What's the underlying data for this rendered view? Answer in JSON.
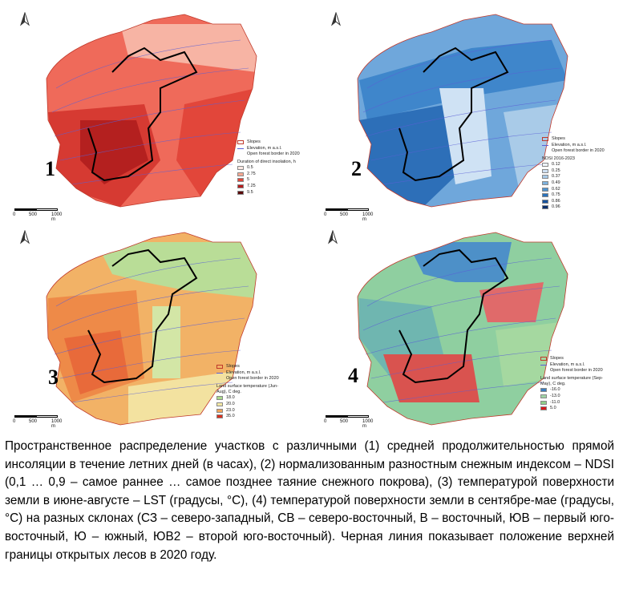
{
  "panels": [
    {
      "number": "1",
      "legend": {
        "slopes": "Slopes",
        "elevation": "Elevation, m a.s.l.",
        "forest": "Open forest border in 2020",
        "title": "Duration of direct insolation, h",
        "entries": [
          {
            "label": "0.5",
            "color": "#fde8e2"
          },
          {
            "label": "2.75",
            "color": "#f5a892"
          },
          {
            "label": "5",
            "color": "#e2463a"
          },
          {
            "label": "7.25",
            "color": "#b51d1d"
          },
          {
            "label": "9.5",
            "color": "#5a0a0a"
          }
        ]
      },
      "colors": {
        "a": "#ef6a5a",
        "b": "#d63a32",
        "c": "#b4201f",
        "d": "#f7b4a4"
      }
    },
    {
      "number": "2",
      "legend": {
        "slopes": "Slopes",
        "elevation": "Elevation, m a.s.l.",
        "forest": "Open forest border in 2020",
        "title": "NDSI 2016-2023",
        "entries": [
          {
            "label": "0.12",
            "color": "#eef4fb"
          },
          {
            "label": "0.25",
            "color": "#cfe0f2"
          },
          {
            "label": "0.37",
            "color": "#a9cbe8"
          },
          {
            "label": "0.49",
            "color": "#7db2dd"
          },
          {
            "label": "0.62",
            "color": "#4f93cf"
          },
          {
            "label": "0.75",
            "color": "#2b72bb"
          },
          {
            "label": "0.86",
            "color": "#17529c"
          },
          {
            "label": "0.96",
            "color": "#0b2f6b"
          }
        ]
      },
      "colors": {
        "a": "#6fa7db",
        "b": "#3f86cb",
        "c": "#2d6fb8",
        "d": "#cfe2f4"
      }
    },
    {
      "number": "3",
      "legend": {
        "slopes": "Slopes",
        "elevation": "Elevation, m a.s.l.",
        "forest": "Open forest border in 2020",
        "title": "Land surface temperature (Jun-Aug), C deg.",
        "entries": [
          {
            "label": "18.0",
            "color": "#a9d98a"
          },
          {
            "label": "20.0",
            "color": "#f3e8a5"
          },
          {
            "label": "23.0",
            "color": "#f0a45a"
          },
          {
            "label": "35.0",
            "color": "#d7301f"
          }
        ]
      },
      "colors": {
        "a": "#f2b266",
        "b": "#ee8a48",
        "c": "#e86a3a",
        "d": "#b9dd97"
      }
    },
    {
      "number": "4",
      "legend": {
        "slopes": "Slopes",
        "elevation": "Elevation, m a.s.l.",
        "forest": "Open forest border in 2020",
        "title": "Land surface temperature (Sep-May), C deg.",
        "entries": [
          {
            "label": "-16.0",
            "color": "#3b7ec0"
          },
          {
            "label": "-13.0",
            "color": "#9fd3a5"
          },
          {
            "label": "-11.0",
            "color": "#8fcf8a"
          },
          {
            "label": "5.0",
            "color": "#d7191c"
          }
        ]
      },
      "colors": {
        "a": "#8fcfa0",
        "b": "#6fb6b0",
        "c": "#e06a6a",
        "d": "#4d90c8"
      }
    }
  ],
  "scale_labels": [
    "0",
    "500",
    "1000 m"
  ],
  "caption": "Пространственное распределение участков с различными (1) средней продолжительностью прямой инсоляции в течение летних дней (в часах), (2) нормализованным разностным снежным индексом – NDSI (0,1 … 0,9 – самое раннее … самое позднее таяние снежного покрова), (3) температурой поверхности земли в июне-августе – LST (градусы, °C), (4) температурой поверхности земли в сентябре-мае (градусы, °C) на разных склонах (СЗ – северо-западный, СВ – северо-восточный, В – восточный, ЮВ – первый юго-восточный, Ю – южный, ЮВ2 – второй юго-восточный). Черная линия показывает положение верхней границы открытых лесов в 2020 году."
}
